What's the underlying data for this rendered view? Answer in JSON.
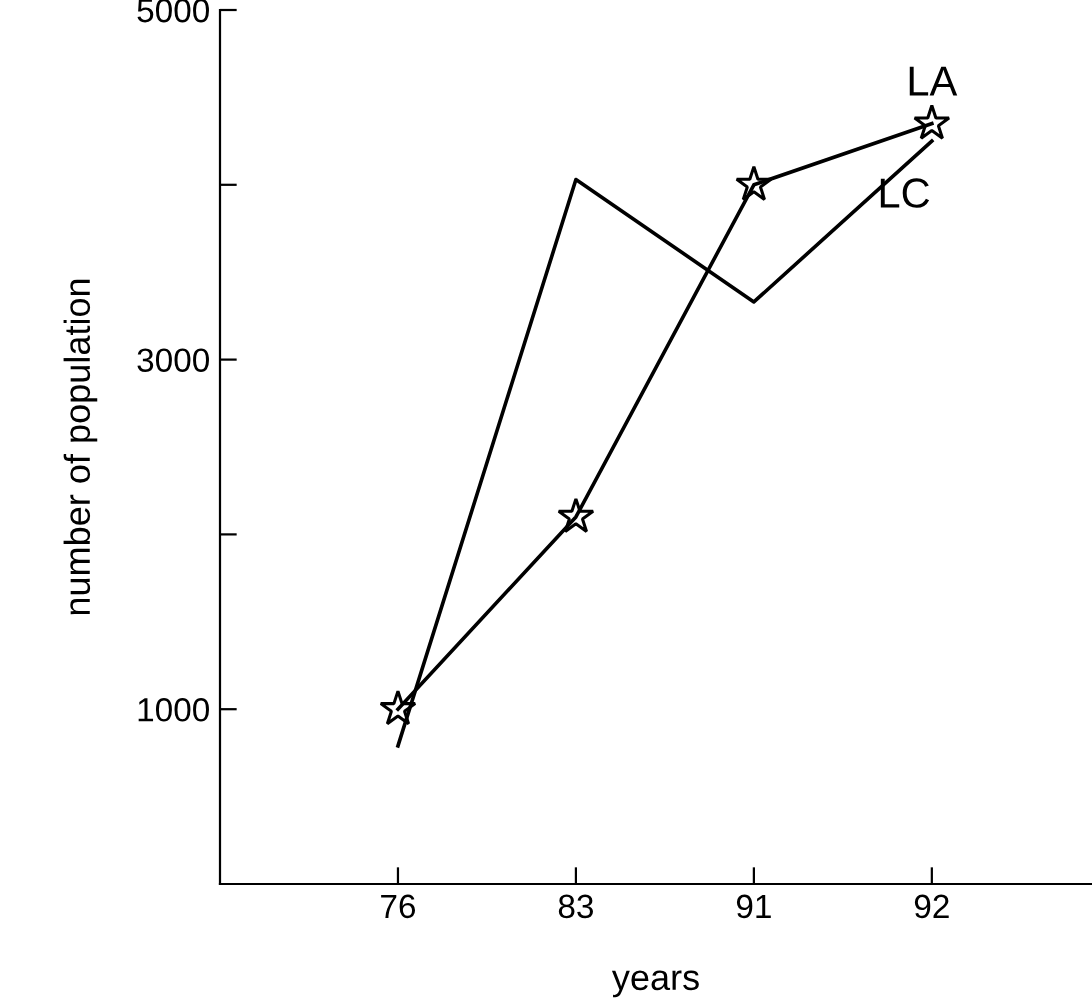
{
  "chart_data": {
    "type": "line",
    "xlabel": "years",
    "ylabel": "number of population",
    "categories": [
      "76",
      "83",
      "91",
      "92"
    ],
    "series": [
      {
        "name": "LA",
        "color": "#000000",
        "marker": "star",
        "values": [
          1000,
          2100,
          4000,
          4350
        ]
      },
      {
        "name": "LC",
        "color": "#000000",
        "marker": "none",
        "values": [
          790,
          4030,
          3330,
          4250
        ]
      }
    ],
    "ylim": [
      0,
      5000
    ],
    "yticks": [
      {
        "value": 1000,
        "label": "1000"
      },
      {
        "value": 2000,
        "label": null
      },
      {
        "value": 3000,
        "label": "3000"
      },
      {
        "value": 4000,
        "label": null
      },
      {
        "value": 5000,
        "label": "5000"
      }
    ],
    "grid": false,
    "legend": false,
    "line_style": "solid"
  }
}
